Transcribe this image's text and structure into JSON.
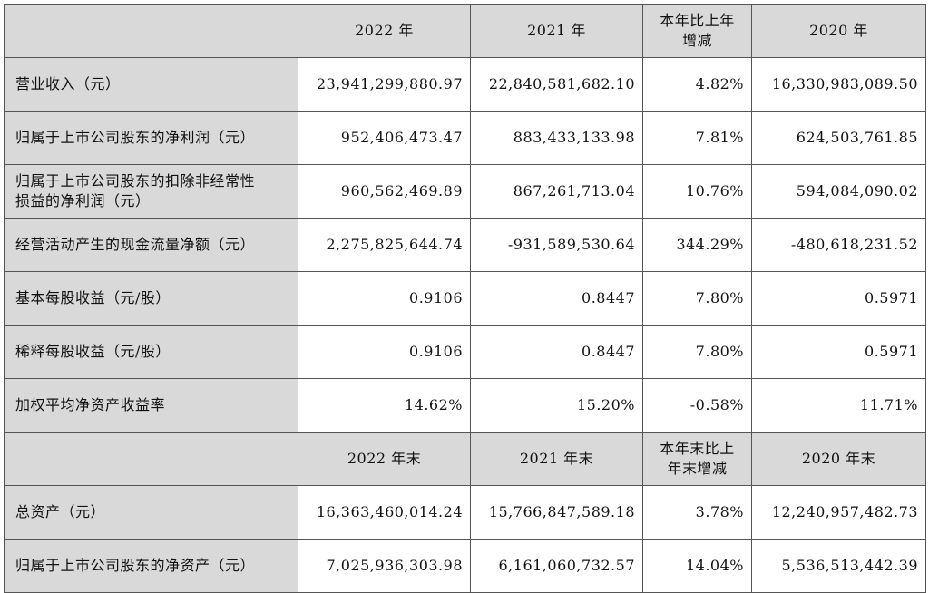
{
  "header1": [
    "",
    "2022 年",
    "2021 年",
    "本年比上年\n增减",
    "2020 年"
  ],
  "rows1": [
    {
      "label": "营业收入（元）",
      "values": [
        "23,941,299,880.97",
        "22,840,581,682.10",
        "4.82%",
        "16,330,983,089.50"
      ]
    },
    {
      "label": "归属于上市公司股东的净利润（元）",
      "values": [
        "952,406,473.47",
        "883,433,133.98",
        "7.81%",
        "624,503,761.85"
      ]
    },
    {
      "label": "归属于上市公司股东的扣除非经常性\n损益的净利润（元）",
      "values": [
        "960,562,469.89",
        "867,261,713.04",
        "10.76%",
        "594,084,090.02"
      ]
    },
    {
      "label": "经营活动产生的现金流量净额（元）",
      "values": [
        "2,275,825,644.74",
        "-931,589,530.64",
        "344.29%",
        "-480,618,231.52"
      ]
    },
    {
      "label": "基本每股收益（元/股）",
      "values": [
        "0.9106",
        "0.8447",
        "7.80%",
        "0.5971"
      ]
    },
    {
      "label": "稀释每股收益（元/股）",
      "values": [
        "0.9106",
        "0.8447",
        "7.80%",
        "0.5971"
      ]
    },
    {
      "label": "加权平均净资产收益率",
      "values": [
        "14.62%",
        "15.20%",
        "-0.58%",
        "11.71%"
      ]
    }
  ],
  "header2": [
    "",
    "2022 年末",
    "2021 年末",
    "本年末比上\n年末增减",
    "2020 年末"
  ],
  "rows2": [
    {
      "label": "总资产（元）",
      "values": [
        "16,363,460,014.24",
        "15,766,847,589.18",
        "3.78%",
        "12,240,957,482.73"
      ]
    },
    {
      "label": "归属于上市公司股东的净资产（元）",
      "values": [
        "7,025,936,303.98",
        "6,161,060,732.57",
        "14.04%",
        "5,536,513,442.39"
      ]
    }
  ]
}
